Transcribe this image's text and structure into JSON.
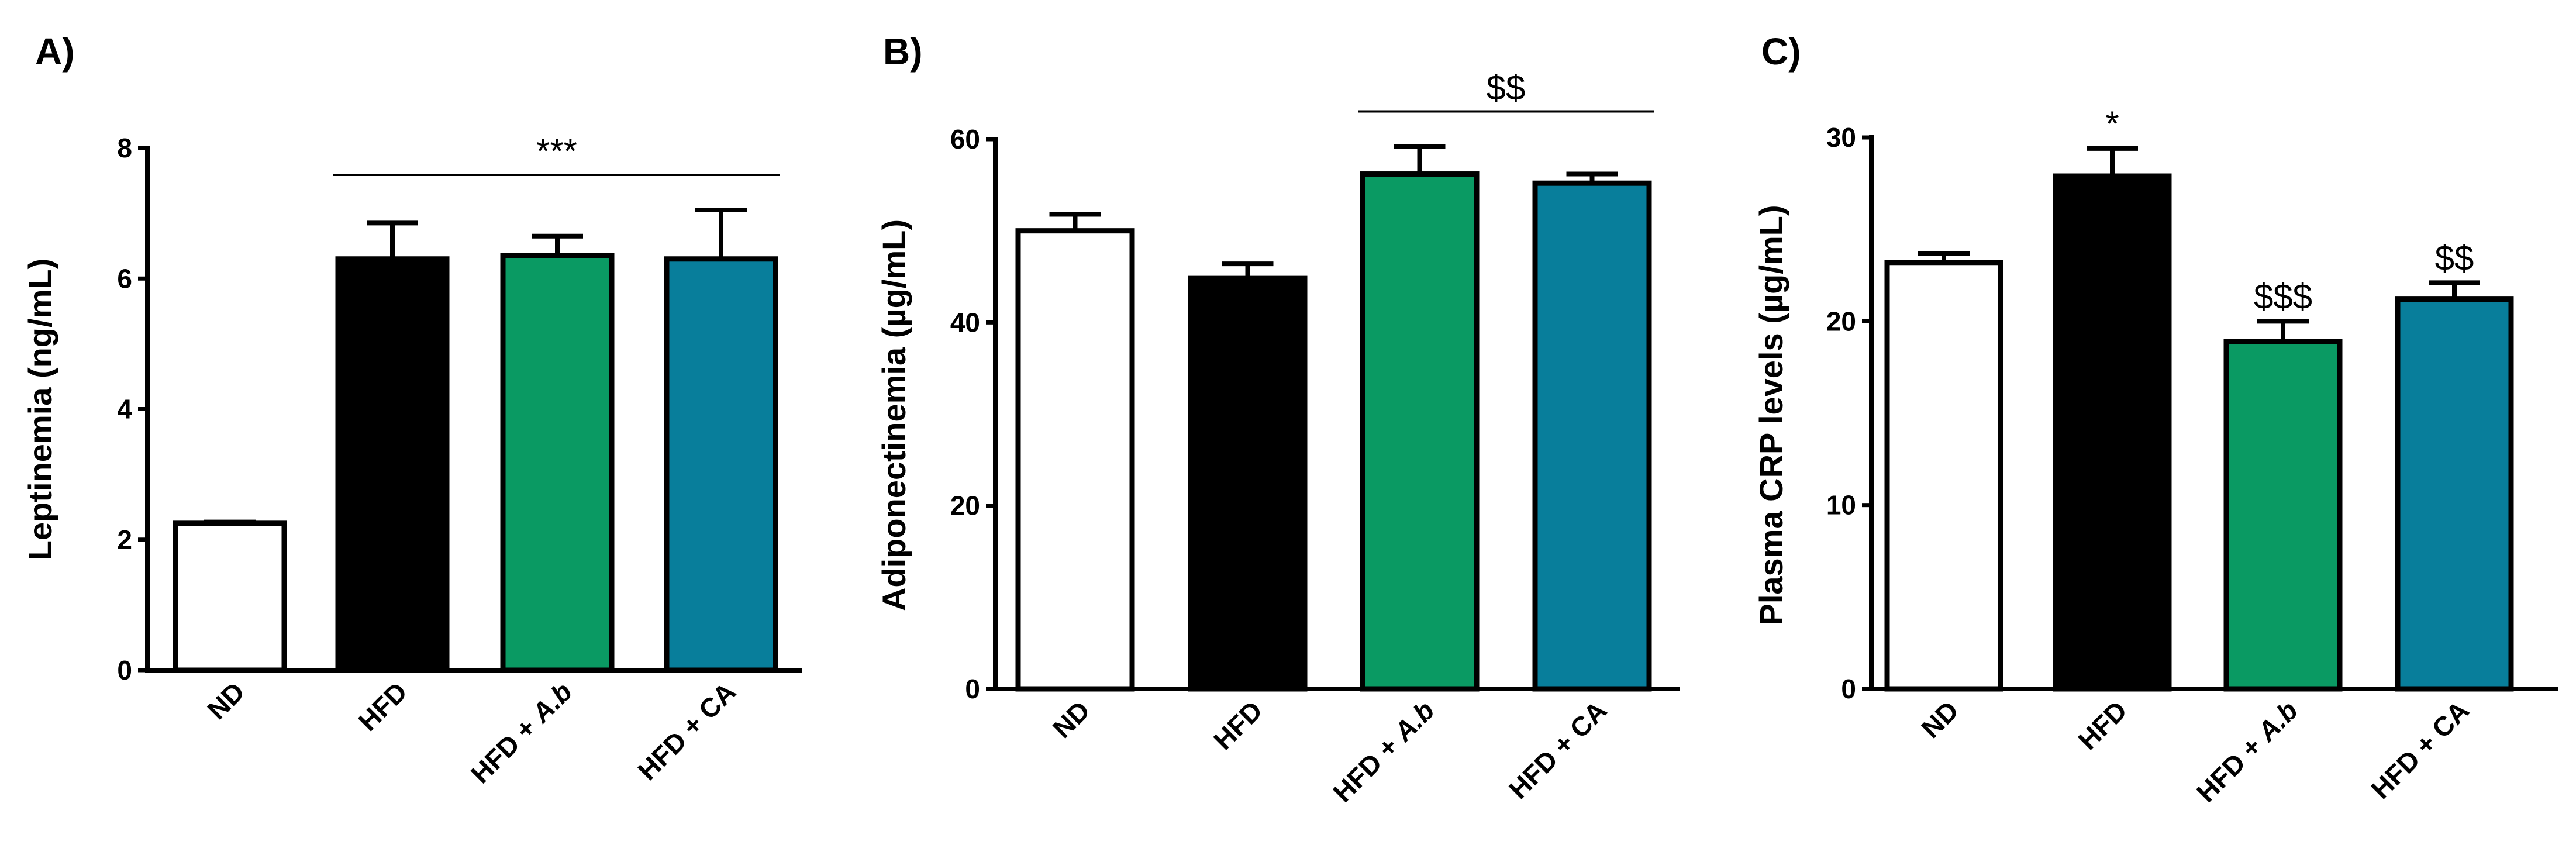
{
  "colors": {
    "ND": "#ffffff",
    "HFD": "#000000",
    "HFD_Ab": "#0a9a63",
    "HFD_CA": "#087e9b",
    "stroke": "#000000"
  },
  "chart_data": [
    {
      "panel": "A)",
      "type": "bar",
      "ylabel": "Leptinemia (ng/mL)",
      "ylim": [
        0,
        8
      ],
      "yticks": [
        "0",
        "2",
        "4",
        "6",
        "8"
      ],
      "categories": [
        {
          "text": "ND",
          "italic": ""
        },
        {
          "text": "HFD",
          "italic": ""
        },
        {
          "text": "HFD + ",
          "italic": "A.b"
        },
        {
          "text": "HFD + CA",
          "italic": ""
        }
      ],
      "values": [
        2.25,
        6.3,
        6.35,
        6.3
      ],
      "errors": [
        0.02,
        0.55,
        0.3,
        0.75
      ],
      "bar_annotations": [
        "",
        "",
        "",
        ""
      ],
      "bracket": {
        "label": "***",
        "from": 1,
        "to": 3
      }
    },
    {
      "panel": "B)",
      "type": "bar",
      "ylabel": "Adiponectinemia (µg/mL)",
      "ylim": [
        0,
        60
      ],
      "yticks": [
        "0",
        "20",
        "40",
        "60"
      ],
      "categories": [
        {
          "text": "ND",
          "italic": ""
        },
        {
          "text": "HFD",
          "italic": ""
        },
        {
          "text": "HFD + ",
          "italic": "A.b"
        },
        {
          "text": "HFD + CA",
          "italic": ""
        }
      ],
      "values": [
        50,
        44.8,
        56.2,
        55.2
      ],
      "errors": [
        1.8,
        1.6,
        3.0,
        1.0
      ],
      "bar_annotations": [
        "",
        "",
        "",
        ""
      ],
      "bracket": {
        "label": "$$",
        "from": 2,
        "to": 3
      }
    },
    {
      "panel": "C)",
      "type": "bar",
      "ylabel": "Plasma CRP levels (µg/mL)",
      "ylim": [
        0,
        30
      ],
      "yticks": [
        "0",
        "10",
        "20",
        "30"
      ],
      "categories": [
        {
          "text": "ND",
          "italic": ""
        },
        {
          "text": "HFD",
          "italic": ""
        },
        {
          "text": "HFD + ",
          "italic": "A.b"
        },
        {
          "text": "HFD + CA",
          "italic": ""
        }
      ],
      "values": [
        23.2,
        27.9,
        18.9,
        21.2
      ],
      "errors": [
        0.5,
        1.5,
        1.1,
        0.9
      ],
      "bar_annotations": [
        "",
        "*",
        "$$$",
        "$$"
      ],
      "bracket": null
    }
  ]
}
